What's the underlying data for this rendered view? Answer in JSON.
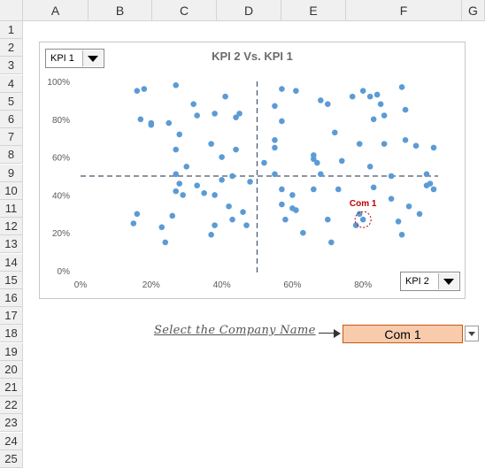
{
  "sheet": {
    "columns": [
      "A",
      "B",
      "C",
      "D",
      "E",
      "F",
      "G"
    ],
    "rows": [
      "1",
      "2",
      "3",
      "4",
      "5",
      "6",
      "7",
      "8",
      "9",
      "10",
      "11",
      "12",
      "13",
      "14",
      "15",
      "16",
      "17",
      "18",
      "19",
      "20",
      "21",
      "22",
      "23",
      "24",
      "25"
    ]
  },
  "chart": {
    "kpi_x_dropdown": "KPI 1",
    "kpi_y_dropdown": "KPI 2",
    "highlight_color": "#c00000",
    "point_color": "#5b9bd5"
  },
  "controls": {
    "select_label": "Select the Company Name",
    "company_value": "Com 1"
  },
  "chart_data": {
    "type": "scatter",
    "title": "KPI 2 Vs. KPI 1",
    "xlabel": "",
    "ylabel": "",
    "xlim": [
      0,
      1
    ],
    "ylim": [
      0,
      1
    ],
    "x_ticks": [
      "0%",
      "20%",
      "40%",
      "60%",
      "80%"
    ],
    "y_ticks": [
      "0%",
      "20%",
      "40%",
      "60%",
      "80%",
      "100%"
    ],
    "grid": false,
    "reference_lines": {
      "x": 0.5,
      "y": 0.5
    },
    "highlight": {
      "label": "Com 1",
      "x": 0.8,
      "y": 0.27
    },
    "series": [
      {
        "points": [
          [
            0.16,
            0.95
          ],
          [
            0.18,
            0.96
          ],
          [
            0.17,
            0.8
          ],
          [
            0.2,
            0.77
          ],
          [
            0.2,
            0.78
          ],
          [
            0.25,
            0.78
          ],
          [
            0.27,
            0.98
          ],
          [
            0.28,
            0.72
          ],
          [
            0.32,
            0.88
          ],
          [
            0.33,
            0.82
          ],
          [
            0.38,
            0.83
          ],
          [
            0.41,
            0.92
          ],
          [
            0.44,
            0.81
          ],
          [
            0.45,
            0.83
          ],
          [
            0.37,
            0.67
          ],
          [
            0.4,
            0.6
          ],
          [
            0.44,
            0.64
          ],
          [
            0.27,
            0.64
          ],
          [
            0.3,
            0.55
          ],
          [
            0.27,
            0.51
          ],
          [
            0.28,
            0.46
          ],
          [
            0.29,
            0.4
          ],
          [
            0.33,
            0.45
          ],
          [
            0.35,
            0.41
          ],
          [
            0.38,
            0.4
          ],
          [
            0.4,
            0.48
          ],
          [
            0.43,
            0.5
          ],
          [
            0.48,
            0.47
          ],
          [
            0.27,
            0.42
          ],
          [
            0.16,
            0.3
          ],
          [
            0.15,
            0.25
          ],
          [
            0.23,
            0.23
          ],
          [
            0.24,
            0.15
          ],
          [
            0.26,
            0.29
          ],
          [
            0.38,
            0.24
          ],
          [
            0.37,
            0.19
          ],
          [
            0.42,
            0.34
          ],
          [
            0.43,
            0.27
          ],
          [
            0.46,
            0.31
          ],
          [
            0.47,
            0.24
          ],
          [
            0.55,
            0.87
          ],
          [
            0.57,
            0.96
          ],
          [
            0.61,
            0.95
          ],
          [
            0.57,
            0.79
          ],
          [
            0.55,
            0.69
          ],
          [
            0.55,
            0.65
          ],
          [
            0.52,
            0.57
          ],
          [
            0.55,
            0.51
          ],
          [
            0.57,
            0.43
          ],
          [
            0.57,
            0.35
          ],
          [
            0.58,
            0.27
          ],
          [
            0.6,
            0.4
          ],
          [
            0.61,
            0.32
          ],
          [
            0.6,
            0.33
          ],
          [
            0.63,
            0.2
          ],
          [
            0.66,
            0.59
          ],
          [
            0.67,
            0.57
          ],
          [
            0.66,
            0.61
          ],
          [
            0.66,
            0.43
          ],
          [
            0.68,
            0.9
          ],
          [
            0.7,
            0.88
          ],
          [
            0.68,
            0.51
          ],
          [
            0.71,
            0.15
          ],
          [
            0.7,
            0.27
          ],
          [
            0.72,
            0.73
          ],
          [
            0.73,
            0.43
          ],
          [
            0.74,
            0.58
          ],
          [
            0.77,
            0.92
          ],
          [
            0.79,
            0.67
          ],
          [
            0.8,
            0.95
          ],
          [
            0.82,
            0.92
          ],
          [
            0.83,
            0.8
          ],
          [
            0.84,
            0.93
          ],
          [
            0.85,
            0.88
          ],
          [
            0.86,
            0.82
          ],
          [
            0.82,
            0.55
          ],
          [
            0.83,
            0.44
          ],
          [
            0.86,
            0.67
          ],
          [
            0.88,
            0.5
          ],
          [
            0.88,
            0.38
          ],
          [
            0.9,
            0.26
          ],
          [
            0.91,
            0.97
          ],
          [
            0.92,
            0.85
          ],
          [
            0.92,
            0.69
          ],
          [
            0.95,
            0.66
          ],
          [
            0.91,
            0.19
          ],
          [
            0.93,
            0.34
          ],
          [
            0.96,
            0.3
          ],
          [
            0.98,
            0.45
          ],
          [
            0.99,
            0.46
          ],
          [
            0.98,
            0.51
          ],
          [
            1.0,
            0.65
          ],
          [
            1.0,
            0.43
          ],
          [
            0.79,
            0.3
          ],
          [
            0.78,
            0.24
          ],
          [
            0.8,
            0.27
          ]
        ]
      }
    ]
  }
}
